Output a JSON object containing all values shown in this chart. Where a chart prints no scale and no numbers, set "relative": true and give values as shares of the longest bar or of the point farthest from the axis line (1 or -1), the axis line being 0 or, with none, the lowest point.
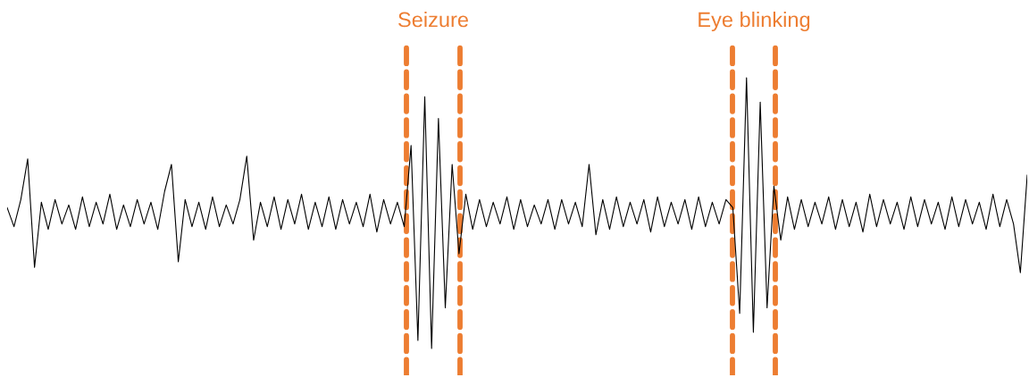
{
  "chart_data": {
    "type": "line",
    "relative": true,
    "legend": false,
    "tick_labels": false,
    "marker": "none",
    "line_style": "solid",
    "categories": [
      null,
      null,
      null,
      null,
      null,
      null,
      null,
      null,
      null,
      null,
      null,
      null,
      null,
      null,
      null,
      null,
      null,
      null,
      null,
      null,
      null,
      null,
      null,
      null,
      null,
      null,
      null,
      null,
      null,
      null,
      null,
      null,
      null,
      null,
      null,
      null,
      null,
      null,
      null,
      null,
      null,
      null,
      null,
      null,
      null,
      null,
      null,
      null,
      null,
      null,
      null,
      null,
      null,
      null,
      null,
      null,
      null,
      null,
      null,
      null,
      null,
      null,
      null,
      null,
      null,
      null,
      null,
      null,
      null,
      null,
      null,
      null,
      null,
      null,
      null,
      null,
      null,
      null,
      null,
      null,
      null,
      null,
      null,
      null,
      null,
      null,
      null,
      null,
      null,
      null,
      null,
      null,
      null,
      null,
      null,
      null,
      null,
      null,
      null,
      null,
      null,
      null,
      null,
      null,
      null,
      null,
      null,
      null,
      null,
      null,
      null,
      null,
      null,
      null,
      null,
      null,
      null,
      null,
      null,
      null,
      null,
      null,
      null,
      null,
      null,
      null,
      null,
      null,
      null,
      null,
      null,
      null,
      null,
      null,
      null,
      null,
      null,
      null,
      null,
      null,
      null,
      null,
      null,
      null,
      null,
      null,
      null,
      null,
      null,
      null
    ],
    "series": [
      {
        "color": "#000000",
        "values": [
          0.52,
          0.45,
          0.55,
          0.7,
          0.3,
          0.54,
          0.44,
          0.55,
          0.46,
          0.53,
          0.44,
          0.56,
          0.45,
          0.54,
          0.46,
          0.57,
          0.44,
          0.53,
          0.45,
          0.55,
          0.46,
          0.54,
          0.44,
          0.58,
          0.68,
          0.32,
          0.55,
          0.45,
          0.54,
          0.44,
          0.56,
          0.45,
          0.53,
          0.46,
          0.55,
          0.71,
          0.4,
          0.54,
          0.45,
          0.56,
          0.44,
          0.55,
          0.46,
          0.57,
          0.44,
          0.54,
          0.45,
          0.56,
          0.44,
          0.55,
          0.46,
          0.54,
          0.45,
          0.57,
          0.43,
          0.55,
          0.46,
          0.54,
          0.45,
          0.75,
          0.03,
          0.93,
          0.0,
          0.85,
          0.15,
          0.68,
          0.35,
          0.57,
          0.44,
          0.55,
          0.45,
          0.54,
          0.46,
          0.56,
          0.44,
          0.55,
          0.45,
          0.53,
          0.46,
          0.55,
          0.44,
          0.55,
          0.46,
          0.54,
          0.45,
          0.68,
          0.42,
          0.55,
          0.44,
          0.56,
          0.45,
          0.54,
          0.46,
          0.55,
          0.43,
          0.56,
          0.45,
          0.54,
          0.46,
          0.55,
          0.44,
          0.56,
          0.45,
          0.54,
          0.46,
          0.55,
          0.52,
          0.13,
          1.0,
          0.06,
          0.91,
          0.15,
          0.6,
          0.4,
          0.56,
          0.44,
          0.55,
          0.45,
          0.54,
          0.46,
          0.56,
          0.44,
          0.55,
          0.45,
          0.54,
          0.43,
          0.57,
          0.45,
          0.55,
          0.46,
          0.54,
          0.44,
          0.56,
          0.45,
          0.55,
          0.46,
          0.54,
          0.44,
          0.56,
          0.45,
          0.55,
          0.46,
          0.54,
          0.44,
          0.57,
          0.45,
          0.55,
          0.46,
          0.28,
          0.64
        ]
      }
    ],
    "annotations": [
      "Seizure",
      "Eye blinking"
    ]
  }
}
